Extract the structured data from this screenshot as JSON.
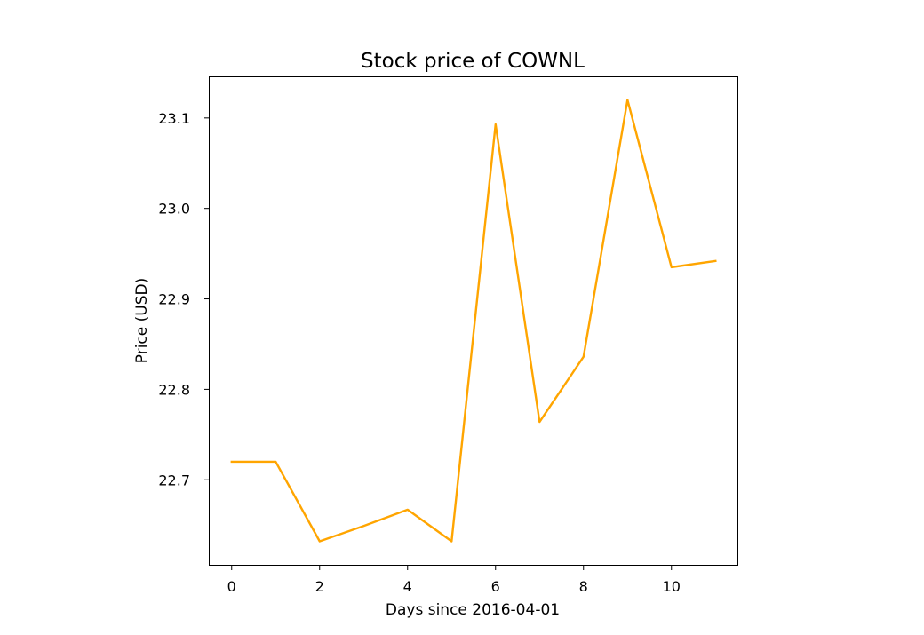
{
  "chart_data": {
    "type": "line",
    "title": "Stock price of COWNL",
    "xlabel": "Days since 2016-04-01",
    "ylabel": "Price (USD)",
    "xlim": [
      -0.5,
      11.5
    ],
    "ylim": [
      22.606,
      23.145
    ],
    "x_ticks": [
      0,
      2,
      4,
      6,
      8,
      10
    ],
    "y_ticks": [
      22.7,
      22.8,
      22.9,
      23.0,
      23.1
    ],
    "y_tick_labels": [
      "22.7",
      "22.8",
      "22.9",
      "23.0",
      "23.1"
    ],
    "grid": false,
    "legend": false,
    "series": [
      {
        "color": "#FFA500",
        "x": [
          0,
          1,
          2,
          3,
          4,
          5,
          6,
          7,
          8,
          9,
          10,
          11
        ],
        "y": [
          22.72,
          22.72,
          22.632,
          22.649,
          22.667,
          22.632,
          23.093,
          22.764,
          22.836,
          23.12,
          22.935,
          22.942
        ]
      }
    ]
  }
}
